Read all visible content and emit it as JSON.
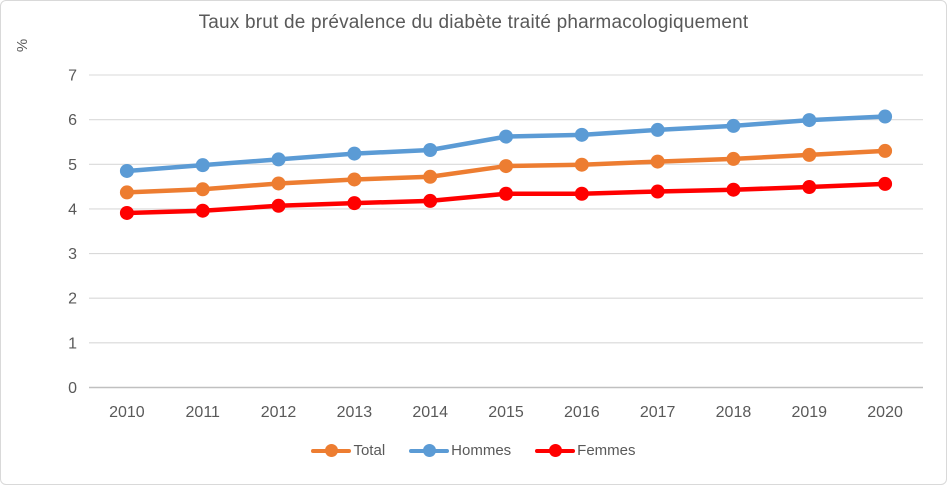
{
  "frame": {
    "background": "#ffffff",
    "border_color": "#d9d9d9"
  },
  "chart_data": {
    "type": "line",
    "title": "Taux brut de prévalence du diabète traité pharmacologiquement",
    "ylabel": "%",
    "xlabel": "",
    "categories": [
      "2010",
      "2011",
      "2012",
      "2013",
      "2014",
      "2015",
      "2016",
      "2017",
      "2018",
      "2019",
      "2020"
    ],
    "series": [
      {
        "name": "Total",
        "color": "#ED7D31",
        "values": [
          4.37,
          4.44,
          4.57,
          4.66,
          4.72,
          4.96,
          4.99,
          5.06,
          5.12,
          5.21,
          5.3
        ]
      },
      {
        "name": "Hommes",
        "color": "#5B9BD5",
        "values": [
          4.85,
          4.98,
          5.11,
          5.24,
          5.32,
          5.62,
          5.66,
          5.77,
          5.86,
          5.99,
          6.07
        ]
      },
      {
        "name": "Femmes",
        "color": "#FF0000",
        "values": [
          3.91,
          3.96,
          4.07,
          4.13,
          4.18,
          4.34,
          4.34,
          4.39,
          4.43,
          4.49,
          4.56
        ]
      }
    ],
    "ylim": [
      0,
      7
    ],
    "yticks": [
      0,
      1,
      2,
      3,
      4,
      5,
      6,
      7
    ],
    "grid": true,
    "legend_position": "bottom",
    "gridline_color": "#d9d9d9",
    "axis_line_color": "#c0c0c0",
    "tick_label_color": "#595959",
    "title_color": "#595959"
  }
}
